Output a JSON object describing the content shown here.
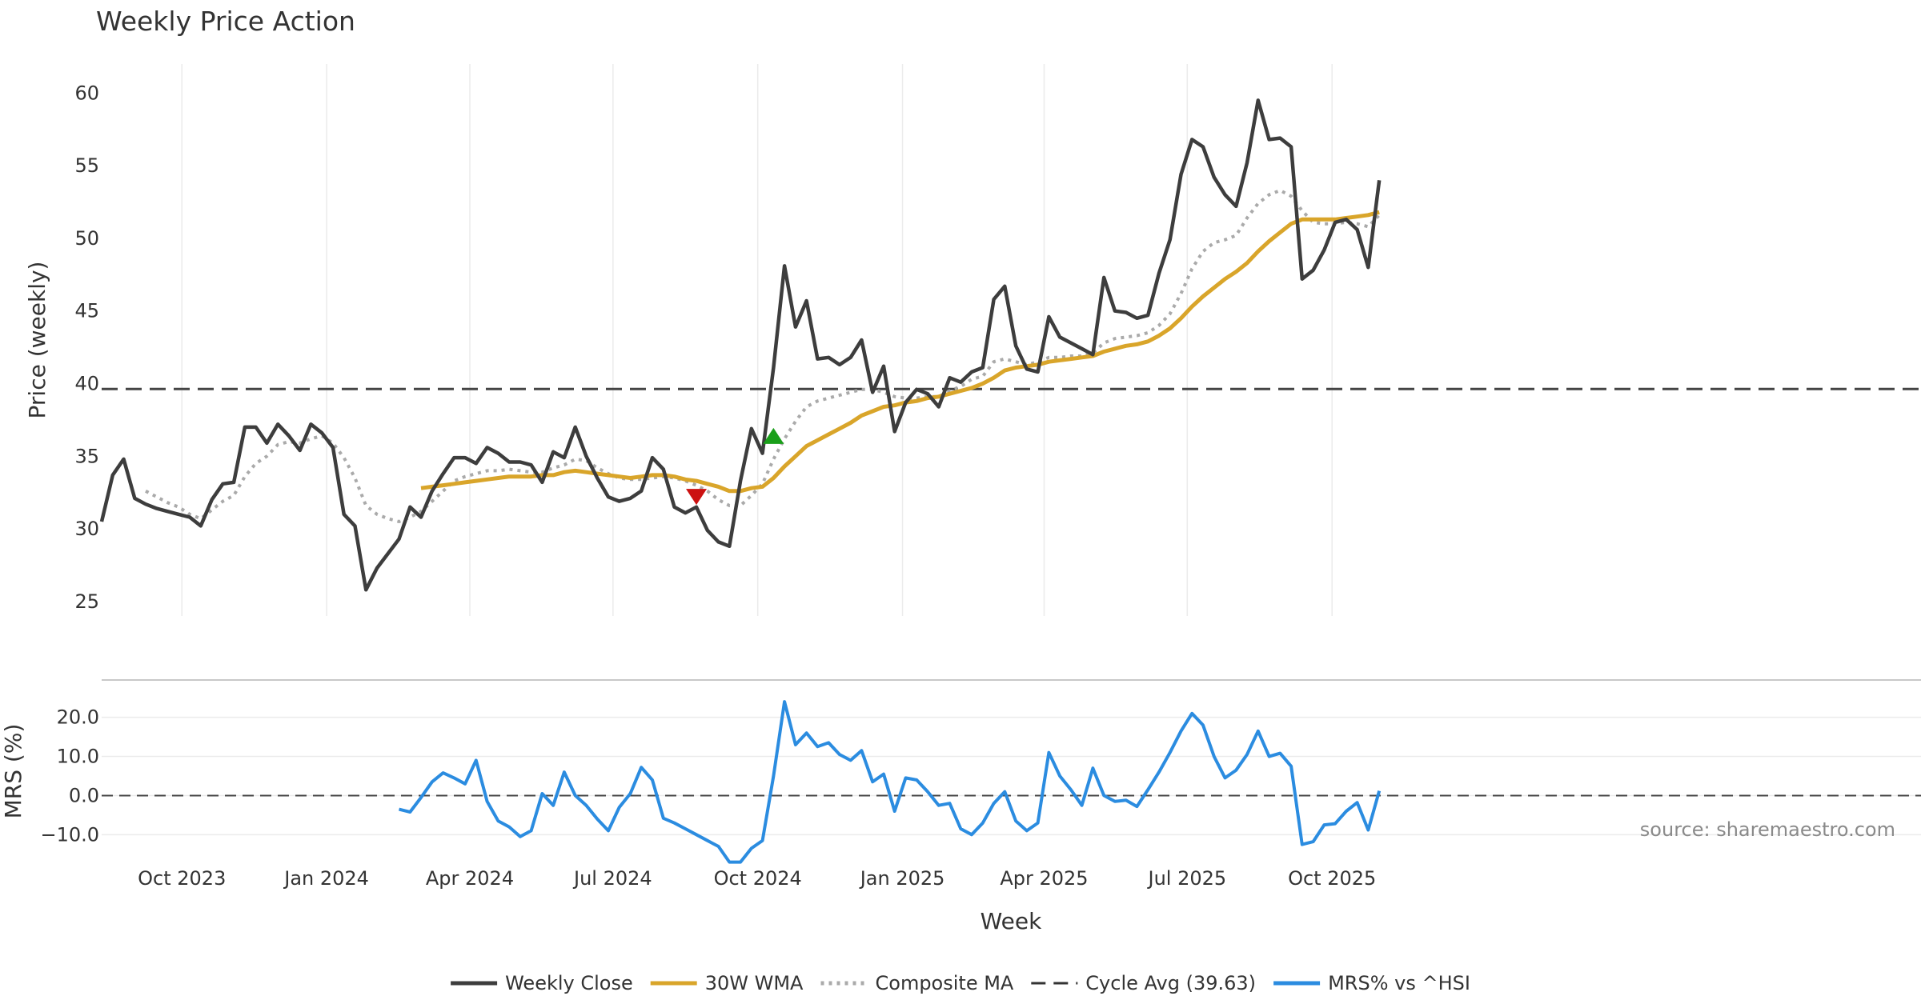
{
  "chart_data": {
    "type": "line",
    "title": "Weekly Price Action",
    "xlabel": "Week",
    "source": "source: sharemaestro.com",
    "x_tick_labels": [
      "Oct 2023",
      "Jan 2024",
      "Apr 2024",
      "Jul 2024",
      "Oct 2024",
      "Jan 2025",
      "Apr 2025",
      "Jul 2025",
      "Oct 2025"
    ],
    "price_panel": {
      "ylabel": "Price (weekly)",
      "ylim": [
        24,
        62
      ],
      "y_ticks": [
        "25",
        "30",
        "35",
        "40",
        "45",
        "50",
        "55",
        "60"
      ],
      "cycle_avg": 39.63,
      "start_week": "2023-08-11",
      "weekly_close": [
        30.5,
        33.7,
        34.8,
        32.1,
        31.7,
        31.4,
        31.2,
        31.0,
        30.8,
        30.2,
        32.0,
        33.1,
        33.2,
        37.0,
        37.0,
        35.9,
        37.2,
        36.4,
        35.4,
        37.2,
        36.6,
        35.6,
        31.0,
        30.2,
        25.8,
        27.3,
        28.3,
        29.3,
        31.5,
        30.8,
        32.6,
        33.8,
        34.9,
        34.9,
        34.5,
        35.6,
        35.2,
        34.6,
        34.6,
        34.4,
        33.2,
        35.3,
        34.9,
        37.0,
        35.0,
        33.5,
        32.2,
        31.9,
        32.1,
        32.6,
        34.9,
        34.1,
        31.5,
        31.1,
        31.5,
        29.9,
        29.1,
        28.8,
        33.3,
        36.9,
        35.2,
        41.1,
        48.1,
        43.9,
        45.7,
        41.7,
        41.8,
        41.3,
        41.8,
        43.0,
        39.4,
        41.2,
        36.7,
        38.7,
        39.6,
        39.3,
        38.4,
        40.4,
        40.1,
        40.8,
        41.1,
        45.8,
        46.7,
        42.6,
        41.0,
        40.8,
        44.6,
        43.2,
        42.8,
        42.4,
        42.0,
        47.3,
        45.0,
        44.9,
        44.5,
        44.7,
        47.6,
        49.9,
        54.4,
        56.8,
        56.3,
        54.2,
        53.0,
        52.2,
        55.2,
        59.5,
        56.8,
        56.9,
        56.3,
        47.2,
        47.8,
        49.2,
        51.1,
        51.3,
        50.6,
        48.0,
        54.0
      ],
      "wma_30w": [
        null,
        null,
        null,
        null,
        null,
        null,
        null,
        null,
        null,
        null,
        null,
        null,
        null,
        null,
        null,
        null,
        null,
        null,
        null,
        null,
        null,
        null,
        null,
        null,
        null,
        null,
        null,
        null,
        null,
        32.8,
        32.9,
        33.0,
        33.1,
        33.2,
        33.3,
        33.4,
        33.5,
        33.6,
        33.6,
        33.6,
        33.7,
        33.7,
        33.9,
        34.0,
        33.9,
        33.8,
        33.7,
        33.6,
        33.5,
        33.6,
        33.7,
        33.7,
        33.6,
        33.4,
        33.3,
        33.1,
        32.9,
        32.6,
        32.6,
        32.8,
        32.9,
        33.5,
        34.3,
        35.0,
        35.7,
        36.1,
        36.5,
        36.9,
        37.3,
        37.8,
        38.1,
        38.4,
        38.5,
        38.7,
        38.8,
        39.0,
        39.1,
        39.3,
        39.5,
        39.7,
        40.0,
        40.4,
        40.9,
        41.1,
        41.2,
        41.3,
        41.5,
        41.6,
        41.7,
        41.8,
        41.9,
        42.2,
        42.4,
        42.6,
        42.7,
        42.9,
        43.3,
        43.8,
        44.5,
        45.3,
        46.0,
        46.6,
        47.2,
        47.7,
        48.3,
        49.1,
        49.8,
        50.4,
        51.0,
        51.3,
        51.3,
        51.3,
        51.3,
        51.4,
        51.5,
        51.6,
        51.8
      ],
      "composite_ma": [
        null,
        null,
        null,
        null,
        32.6,
        32.2,
        31.8,
        31.5,
        31.0,
        30.7,
        31.3,
        31.9,
        32.3,
        33.6,
        34.5,
        35.0,
        35.8,
        36.0,
        35.9,
        36.2,
        36.4,
        35.9,
        34.9,
        33.5,
        31.6,
        31.0,
        30.7,
        30.5,
        30.8,
        31.2,
        31.9,
        32.6,
        33.3,
        33.6,
        33.8,
        34.0,
        34.0,
        34.1,
        34.0,
        33.9,
        33.9,
        34.2,
        34.4,
        34.8,
        34.7,
        34.2,
        33.8,
        33.5,
        33.4,
        33.4,
        33.5,
        33.6,
        33.5,
        33.3,
        33.0,
        32.6,
        32.0,
        31.6,
        31.6,
        32.3,
        33.1,
        34.8,
        36.2,
        37.4,
        38.4,
        38.8,
        39.0,
        39.2,
        39.4,
        39.6,
        39.6,
        39.4,
        39.1,
        39.0,
        39.0,
        39.1,
        39.1,
        39.5,
        39.8,
        40.3,
        40.5,
        41.5,
        41.7,
        41.5,
        41.3,
        41.5,
        41.8,
        41.8,
        41.9,
        41.9,
        42.1,
        42.8,
        43.1,
        43.2,
        43.3,
        43.5,
        44.0,
        44.8,
        46.2,
        47.9,
        49.1,
        49.7,
        49.9,
        50.2,
        51.4,
        52.4,
        53.0,
        53.3,
        52.9,
        51.9,
        51.1,
        51.0,
        51.0,
        51.1,
        51.0,
        50.8,
        51.6
      ],
      "signals": [
        {
          "type": "sell",
          "index": 54,
          "value": 32.2,
          "color": "#cc1111"
        },
        {
          "type": "buy",
          "index": 61,
          "value": 36.4,
          "color": "#1a9f1a"
        }
      ]
    },
    "mrs_panel": {
      "ylabel": "MRS (%)",
      "ylim": [
        -17.5,
        27.5
      ],
      "y_ticks": [
        "20.0",
        "10.0",
        "0.0",
        "−10.0"
      ],
      "mrs_vs_hsi": [
        null,
        null,
        null,
        null,
        null,
        null,
        null,
        null,
        null,
        null,
        null,
        null,
        null,
        null,
        null,
        null,
        null,
        null,
        null,
        null,
        null,
        null,
        null,
        null,
        null,
        null,
        null,
        -3.5,
        -4.2,
        -0.5,
        3.5,
        5.8,
        4.5,
        3.0,
        9.0,
        -1.5,
        -6.5,
        -8.0,
        -10.5,
        -9.0,
        0.5,
        -2.5,
        6.0,
        0.0,
        -2.5,
        -6.0,
        -9.0,
        -3.0,
        0.5,
        7.2,
        4.0,
        -5.8,
        -7.0,
        -8.5,
        -10.0,
        -11.5,
        -13.0,
        -17.0,
        -17.0,
        -13.5,
        -11.5,
        5.0,
        24.0,
        13.0,
        16.0,
        12.5,
        13.5,
        10.5,
        9.0,
        11.5,
        3.5,
        5.5,
        -4.0,
        4.5,
        4.0,
        1.0,
        -2.5,
        -2.0,
        -8.5,
        -10.0,
        -7.0,
        -2.0,
        1.0,
        -6.5,
        -9.0,
        -7.0,
        11.0,
        5.0,
        1.5,
        -2.5,
        7.0,
        0.0,
        -1.5,
        -1.2,
        -2.8,
        1.5,
        6.0,
        11.0,
        16.5,
        21.0,
        18.0,
        10.0,
        4.5,
        6.5,
        10.5,
        16.5,
        10.0,
        10.8,
        7.5,
        -12.5,
        -11.8,
        -7.5,
        -7.2,
        -4.0,
        -1.8,
        -8.8,
        1.2
      ]
    },
    "legend": [
      {
        "label": "Weekly Close",
        "color": "#3d3d3d",
        "style": "solid"
      },
      {
        "label": "30W WMA",
        "color": "#d9a52a",
        "style": "solid"
      },
      {
        "label": "Composite MA",
        "color": "#aaaaaa",
        "style": "dotted"
      },
      {
        "label": "Cycle Avg (39.63)",
        "color": "#333333",
        "style": "dashed"
      },
      {
        "label": "MRS% vs ^HSI",
        "color": "#2b8ce0",
        "style": "solid"
      }
    ]
  }
}
